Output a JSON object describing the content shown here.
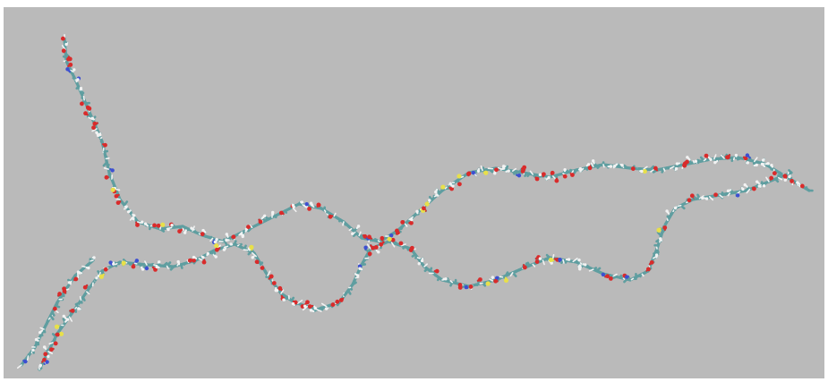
{
  "scene": {
    "description_shown": "",
    "background_color": "#bababa",
    "frame_color": "#ffffff",
    "molecule": {
      "icon": "molecule-ball-and-stick",
      "atom_colors": {
        "carbon": "#5f9ea0",
        "oxygen": "#d92b2b",
        "hydrogen": "#f2f2f2",
        "nitrogen": "#3d4fd1",
        "sulfur": "#e8e04a"
      }
    }
  }
}
